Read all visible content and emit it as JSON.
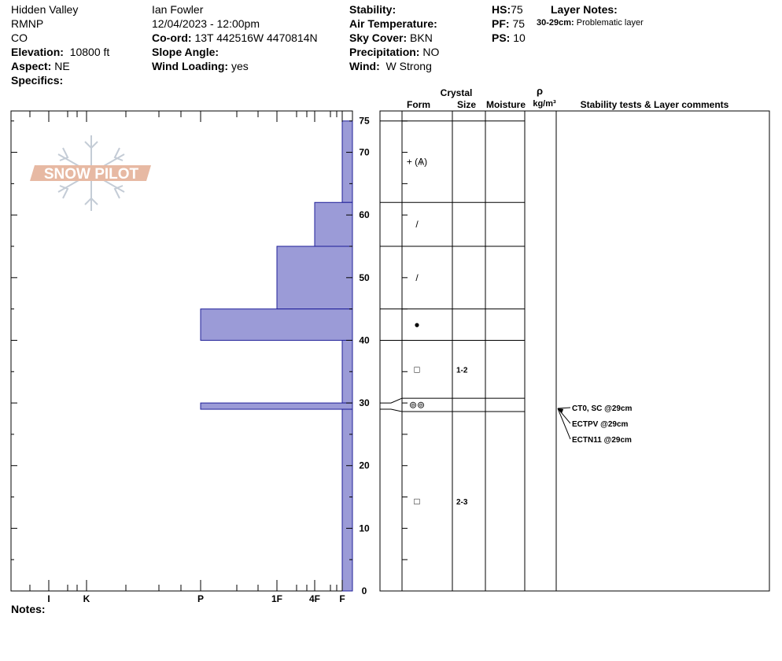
{
  "header": {
    "location": "Hidden Valley",
    "area": "RMNP",
    "state": "CO",
    "elevation_label": "Elevation:",
    "elevation": "10800 ft",
    "aspect_label": "Aspect:",
    "aspect": "NE",
    "specifics_label": "Specifics:",
    "observer": "Ian Fowler",
    "datetime": "12/04/2023 - 12:00pm",
    "coord_label": "Co-ord:",
    "coord": "13T 442516W 4470814N",
    "slope_label": "Slope Angle:",
    "slope": "",
    "wind_loading_label": "Wind Loading:",
    "wind_loading": "yes",
    "stability_label": "Stability:",
    "stability": "",
    "air_temp_label": "Air Temperature:",
    "air_temp": "",
    "sky_label": "Sky Cover:",
    "sky": "BKN",
    "precip_label": "Precipitation:",
    "precip": "NO",
    "wind_label": "Wind:",
    "wind": "W Strong",
    "hs_label": "HS:",
    "hs": "75",
    "pf_label": "PF:",
    "pf": "75",
    "ps_label": "PS:",
    "ps": "10",
    "layer_notes_label": "Layer Notes:",
    "layer_note_range": "30-29cm:",
    "layer_note_text": "Problematic layer",
    "notes_label": "Notes:"
  },
  "logo_text": "SNOW PILOT",
  "columns": {
    "crystal": "Crystal",
    "form": "Form",
    "size": "Size",
    "moisture": "Moisture",
    "rho": "ρ",
    "density_unit": "kg/m³",
    "stability_comments": "Stability tests & Layer comments"
  },
  "chart_data": {
    "type": "bar",
    "xlabel": "",
    "ylabel": "",
    "hardness_ticks": [
      "I",
      "K",
      "P",
      "1F",
      "4F",
      "F"
    ],
    "depth_ticks": [
      0,
      10,
      20,
      30,
      40,
      50,
      60,
      70,
      75
    ],
    "ylim": [
      0,
      75
    ],
    "colors": {
      "hardness_fill": "#9b9bd7",
      "hardness_stroke": "#1f1f99"
    },
    "layers": [
      {
        "top": 75,
        "bottom": 62,
        "hardness": "F",
        "form": "+ (Ѧ)",
        "size": ""
      },
      {
        "top": 62,
        "bottom": 55,
        "hardness": "4F",
        "form": "/",
        "size": ""
      },
      {
        "top": 55,
        "bottom": 45,
        "hardness": "1F",
        "form": "/",
        "size": ""
      },
      {
        "top": 45,
        "bottom": 40,
        "hardness": "P",
        "form": "●",
        "size": ""
      },
      {
        "top": 40,
        "bottom": 30,
        "hardness": "F",
        "form": "□",
        "size": "1-2"
      },
      {
        "top": 30,
        "bottom": 29,
        "hardness": "P",
        "form": "⊚⊚",
        "size": ""
      },
      {
        "top": 29,
        "bottom": 0,
        "hardness": "F",
        "form": "□",
        "size": "2-3"
      }
    ],
    "stability_tests": [
      {
        "text": "CT0, SC @29cm",
        "depth": 29
      },
      {
        "text": "ECTPV @29cm",
        "depth": 29
      },
      {
        "text": "ECTN11 @29cm",
        "depth": 29
      }
    ]
  }
}
